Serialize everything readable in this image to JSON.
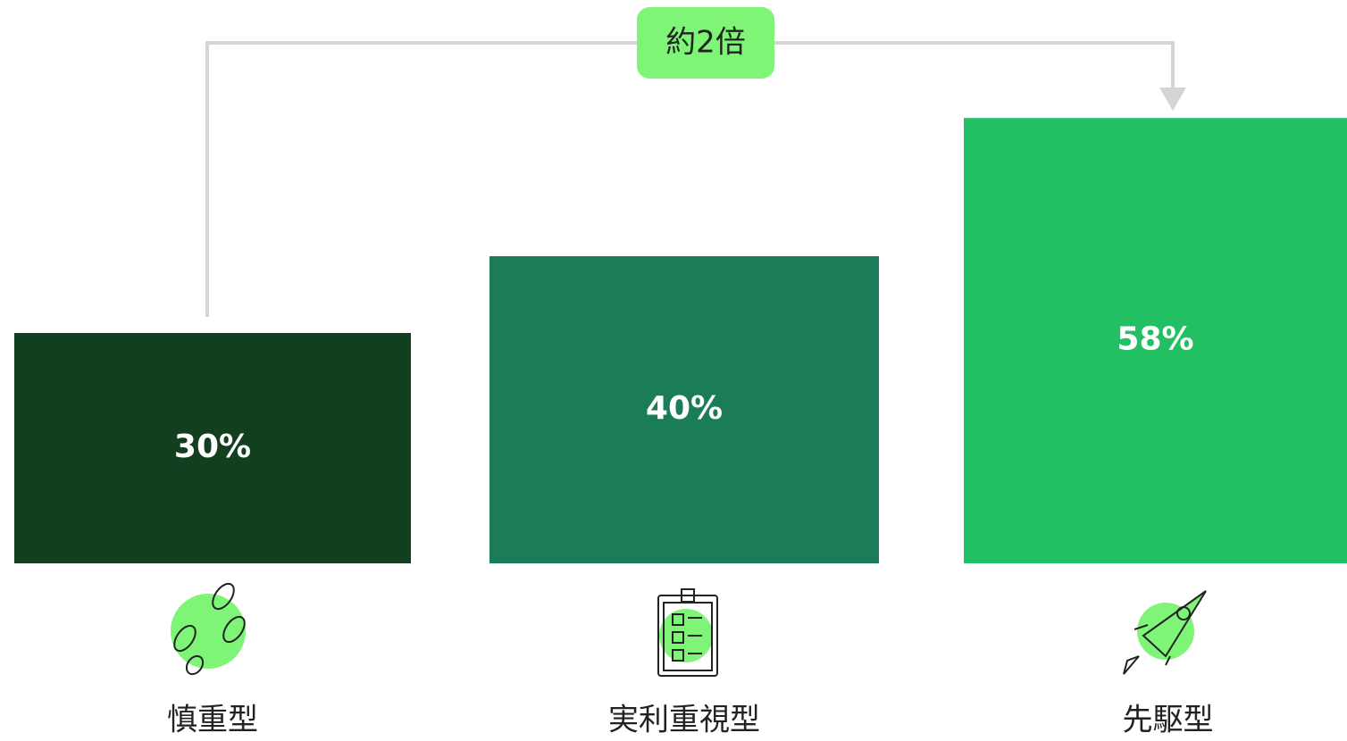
{
  "chart_data": {
    "type": "bar",
    "categories": [
      "慎重型",
      "実利重視型",
      "先駆型"
    ],
    "series": [
      {
        "name": null,
        "colors": [
          "#113f1f",
          "#1b7c58",
          "#22c063"
        ],
        "values": [
          30,
          40,
          58
        ],
        "value_labels": [
          "30%",
          "40%",
          "58%"
        ]
      }
    ],
    "ylim": [
      0,
      60
    ],
    "annotation": "約2倍"
  }
}
